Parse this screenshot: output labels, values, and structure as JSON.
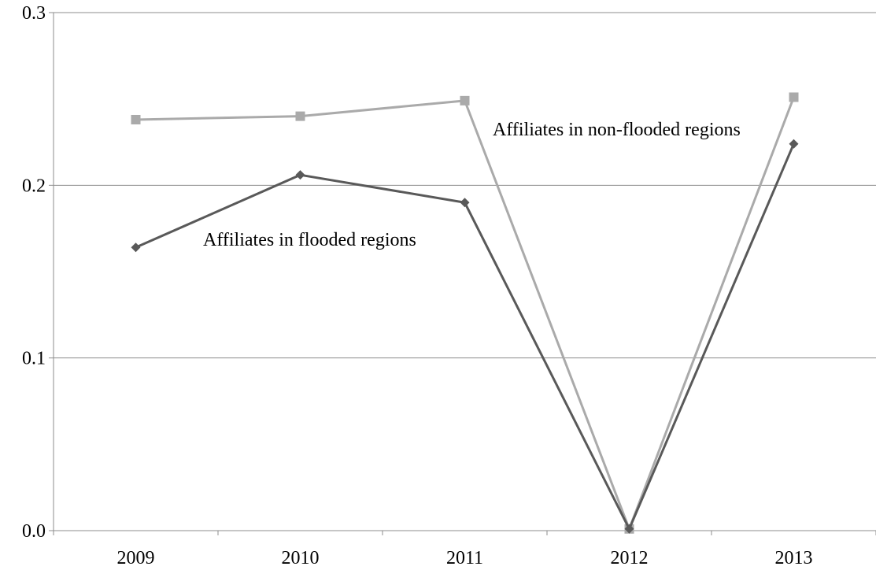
{
  "chart_data": {
    "type": "line",
    "categories": [
      "2009",
      "2010",
      "2011",
      "2012",
      "2013"
    ],
    "y_ticks": [
      "0.0",
      "0.1",
      "0.2",
      "0.3"
    ],
    "ylim": [
      0,
      0.3
    ],
    "grid": "horizontal",
    "legend": "none",
    "series": [
      {
        "name": "Affiliates in non-flooded regions",
        "values": [
          0.238,
          0.24,
          0.249,
          0.001,
          0.251
        ],
        "color": "#aaaaaa",
        "marker": "square"
      },
      {
        "name": "Affiliates in flooded regions",
        "values": [
          0.164,
          0.206,
          0.19,
          0.001,
          0.224
        ],
        "color": "#595959",
        "marker": "diamond"
      }
    ],
    "annotations": [
      {
        "text": "Affiliates in non-flooded regions",
        "series": 0
      },
      {
        "text": "Affiliates in flooded regions",
        "series": 1
      }
    ]
  }
}
